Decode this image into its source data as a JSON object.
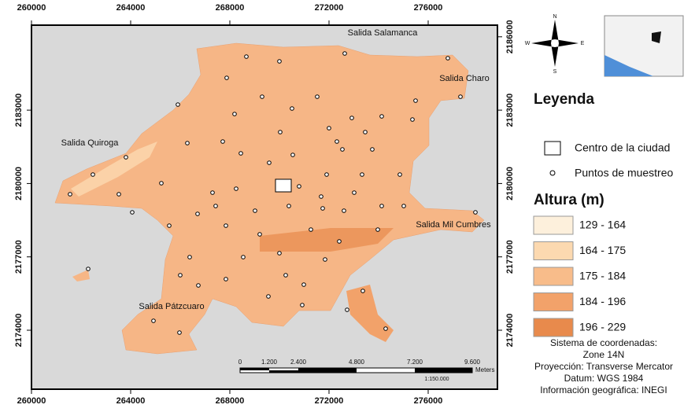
{
  "map": {
    "x_ticks": [
      260000,
      264000,
      268000,
      272000,
      276000
    ],
    "y_ticks_left": [
      2183000,
      2180000,
      2177000,
      2174000
    ],
    "y_ticks_right": [
      2186000,
      2183000,
      2180000,
      2177000,
      2174000
    ],
    "places": [
      "Salida Salamanca",
      "Salida Charo",
      "Salida Quiroga",
      "Salida Mil Cumbres",
      "Salida Pátzcuaro"
    ],
    "scale_bar": {
      "labels": [
        "0",
        "1.200",
        "2.400",
        "4.800",
        "7.200",
        "9.600"
      ],
      "unit": "Meters",
      "ratio": "1:150.000"
    }
  },
  "legend": {
    "title": "Leyenda",
    "items": [
      "Centro de la ciudad",
      "Puntos de muestreo"
    ],
    "elevation_title": "Altura (m)",
    "classes": [
      {
        "label": "129 - 164",
        "color": "#fdf0dc"
      },
      {
        "label": "164 - 175",
        "color": "#fcd9b0"
      },
      {
        "label": "175 - 184",
        "color": "#f8bc8a"
      },
      {
        "label": "184 - 196",
        "color": "#f2a26a"
      },
      {
        "label": "196 - 229",
        "color": "#e88a4c"
      }
    ]
  },
  "info": [
    "Sistema de coordenadas:",
    "Zone 14N",
    "Proyección: Transverse Mercator",
    "Datum: WGS 1984",
    "Información geográfica: INEGI"
  ]
}
